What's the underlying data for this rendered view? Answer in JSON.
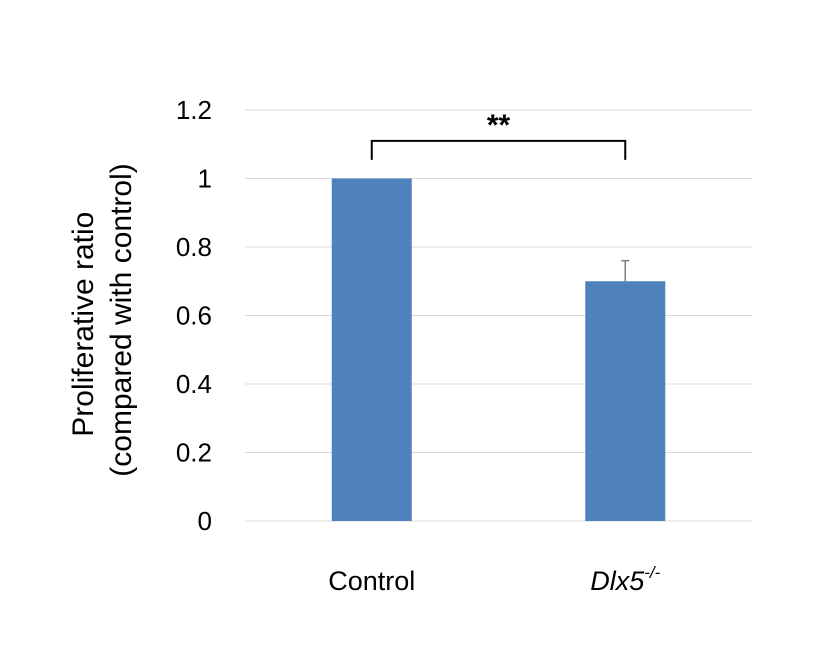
{
  "chart_data": {
    "type": "bar",
    "categories": [
      "Control",
      "Dlx5-/-"
    ],
    "category_labels": [
      {
        "text": "Control",
        "italic": false,
        "superscript": ""
      },
      {
        "text": "Dlx5",
        "italic": true,
        "superscript": "-/-"
      }
    ],
    "values": [
      1.0,
      0.7
    ],
    "error_upper": [
      0,
      0.06
    ],
    "ylabel_line1": "Proliferative ratio",
    "ylabel_line2": "(compared with control)",
    "xlabel": "",
    "title": "",
    "ylim": [
      0,
      1.2
    ],
    "yticks": [
      0,
      0.2,
      0.4,
      0.6,
      0.8,
      1,
      1.2
    ],
    "ytick_labels": [
      "0",
      "0.2",
      "0.4",
      "0.6",
      "0.8",
      "1",
      "1.2"
    ],
    "grid": true,
    "significance": {
      "label": "**",
      "between": [
        0,
        1
      ],
      "level": 1.11
    },
    "colors": {
      "bar": "#4f81bd",
      "grid": "#d9d9d9",
      "error": "#7f7f7f",
      "bracket": "#000000"
    }
  }
}
